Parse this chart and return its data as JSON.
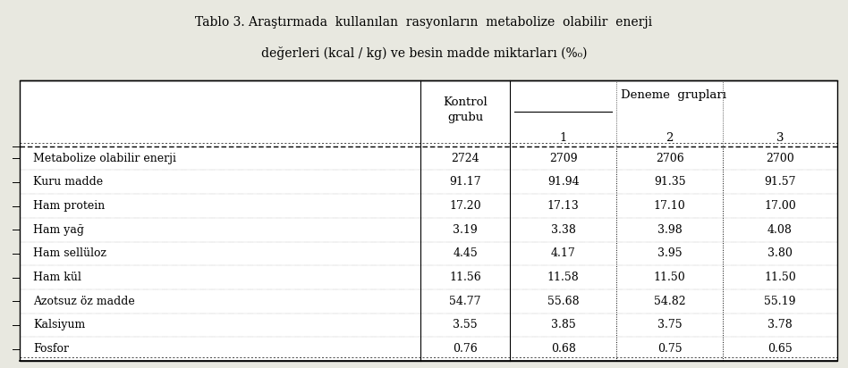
{
  "title_line1": "Tablo 3. Araştırmada  kullanılan  rasyonların  metabolize  olabilir  enerji",
  "title_line2": "değerleri (kcal / kg) ve besin madde miktarları (&0)",
  "col_header_kontrol": "Kontrol\ngrubu",
  "col_header_group": "Deneme  grupları",
  "col_subheaders": [
    "1",
    "2",
    "3"
  ],
  "row_labels": [
    "Metabolize olabilir enerji",
    "Kuru madde",
    "Ham protein",
    "Ham yağ",
    "Ham sellüloz",
    "Ham kül",
    "Azotsuz öz madde",
    "Kalsiyum",
    "Fosfor"
  ],
  "data": [
    [
      "2724",
      "2709",
      "2706",
      "2700"
    ],
    [
      "91.17",
      "91.94",
      "91.35",
      "91.57"
    ],
    [
      "17.20",
      "17.13",
      "17.10",
      "17.00"
    ],
    [
      "3.19",
      "3.38",
      "3.98",
      "4.08"
    ],
    [
      "4.45",
      "4.17",
      "3.95",
      "3.80"
    ],
    [
      "11.56",
      "11.58",
      "11.50",
      "11.50"
    ],
    [
      "54.77",
      "55.68",
      "54.82",
      "55.19"
    ],
    [
      "3.55",
      "3.85",
      "3.75",
      "3.78"
    ],
    [
      "0.76",
      "0.68",
      "0.75",
      "0.65"
    ]
  ],
  "bg_color": "#e8e8e0",
  "fig_width": 9.48,
  "fig_height": 4.12
}
